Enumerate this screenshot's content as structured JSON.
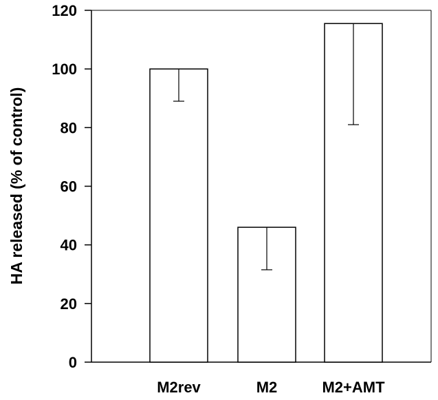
{
  "chart_data": {
    "type": "bar",
    "title": "",
    "xlabel": "",
    "ylabel": "HA released (% of  control)",
    "ylim": [
      0,
      120
    ],
    "yticks": [
      0,
      20,
      40,
      60,
      80,
      100,
      120
    ],
    "categories": [
      "M2rev",
      "M2",
      "M2+AMT"
    ],
    "values": [
      100,
      46,
      115.5
    ],
    "error_lower": [
      89,
      31.5,
      81
    ],
    "grid": false,
    "legend": "none",
    "bar_fill": "#ffffff",
    "bar_stroke": "#000000"
  }
}
